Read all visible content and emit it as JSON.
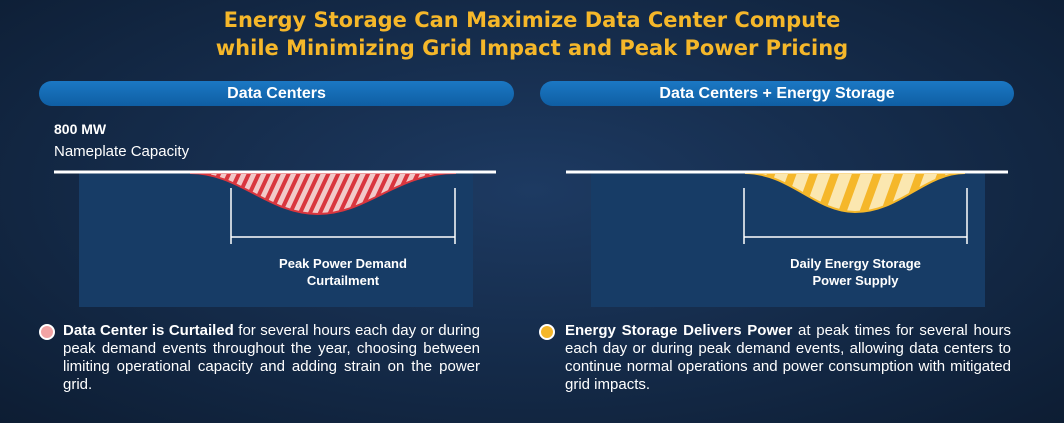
{
  "title": {
    "line1": "Energy Storage Can Maximize Data Center Compute",
    "line2": "while Minimizing Grid Impact and Peak Power Pricing"
  },
  "left_panel": {
    "header": "Data Centers",
    "capacity_value": "800 MW",
    "capacity_label": "Nameplate Capacity",
    "annotation_line1": "Peak Power Demand",
    "annotation_line2": "Curtailment",
    "bullet_bold": "Data Center is Curtailed",
    "bullet_text": " for several hours each day or during peak demand events throughout the year, choosing between limiting operational capacity and adding strain on the power grid.",
    "bullet_color": "#f2a4a4",
    "fill_color": "#d9363e"
  },
  "right_panel": {
    "header": "Data Centers + Energy Storage",
    "annotation_line1": "Daily Energy Storage",
    "annotation_line2": "Power Supply",
    "bullet_bold": "Energy Storage Delivers Power",
    "bullet_text": " at peak times for several hours each day or during peak demand events, allowing data centers to continue normal operations and power consumption with mitigated grid impacts.",
    "bullet_color": "#f5b72a",
    "fill_color": "#f5b72a"
  },
  "colors": {
    "title": "#f5b72a",
    "panel": "#173c66",
    "pill": "#1469b3"
  }
}
